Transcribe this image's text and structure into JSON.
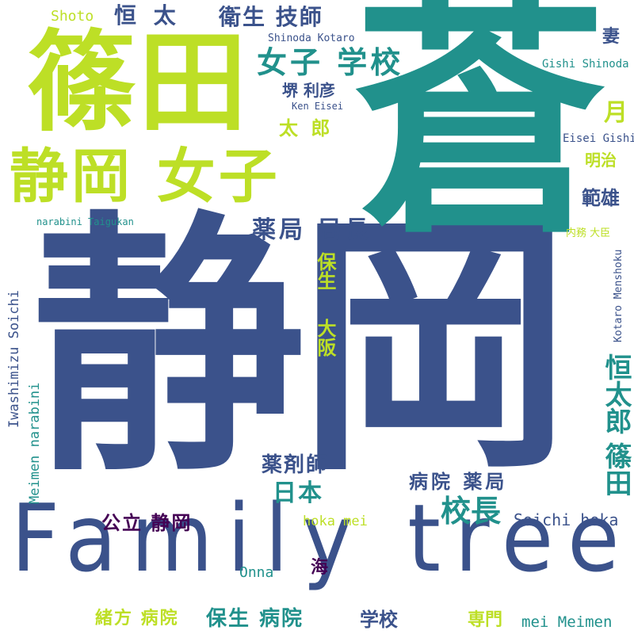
{
  "words": [
    {
      "id": "w1",
      "text": "静岡",
      "color": "#3b528b"
    },
    {
      "id": "w2",
      "text": "蒼",
      "color": "#21918c"
    },
    {
      "id": "w3",
      "text": "Family tree",
      "color": "#3b528b"
    },
    {
      "id": "w4",
      "text": "篠田",
      "color": "#bddf26"
    },
    {
      "id": "w5",
      "text": "静岡 女子",
      "color": "#bddf26"
    },
    {
      "id": "w6",
      "text": "女子 学校",
      "color": "#21918c"
    },
    {
      "id": "w7",
      "text": "衛生 技師",
      "color": "#3b528b"
    },
    {
      "id": "w8",
      "text": "Shoto",
      "color": "#bddf26"
    },
    {
      "id": "w9",
      "text": "恒 太",
      "color": "#3b528b"
    },
    {
      "id": "w10",
      "text": "Shinoda Kotaro",
      "color": "#3b528b"
    },
    {
      "id": "w11",
      "text": "堺 利彦",
      "color": "#3b528b"
    },
    {
      "id": "w12",
      "text": "Ken Eisei",
      "color": "#3b528b"
    },
    {
      "id": "w13",
      "text": "太 郎",
      "color": "#bddf26"
    },
    {
      "id": "w14",
      "text": "妻",
      "color": "#3b528b"
    },
    {
      "id": "w15",
      "text": "Gishi Shinoda",
      "color": "#21918c"
    },
    {
      "id": "w16",
      "text": "月",
      "color": "#bddf26"
    },
    {
      "id": "w17",
      "text": "Eisei Gishi",
      "color": "#3b528b"
    },
    {
      "id": "w18",
      "text": "明治",
      "color": "#bddf26"
    },
    {
      "id": "w19",
      "text": "範雄",
      "color": "#3b528b"
    },
    {
      "id": "w20",
      "text": "内務 大臣",
      "color": "#bddf26"
    },
    {
      "id": "w21",
      "text": "narabini Taigukan",
      "color": "#21918c"
    },
    {
      "id": "w22",
      "text": "薬局 局長",
      "color": "#3b528b"
    },
    {
      "id": "w23",
      "text": "保生",
      "color": "#bddf26"
    },
    {
      "id": "w24",
      "text": "大阪",
      "color": "#bddf26"
    },
    {
      "id": "w25",
      "text": "Iwashimizu Soichi",
      "color": "#3b528b"
    },
    {
      "id": "w26",
      "text": "Meimen narabini",
      "color": "#21918c"
    },
    {
      "id": "w27",
      "text": "Kotaro Menshoku",
      "color": "#3b528b"
    },
    {
      "id": "w28",
      "text": "恒太郎",
      "color": "#21918c"
    },
    {
      "id": "w29",
      "text": "篠田",
      "color": "#21918c"
    },
    {
      "id": "w30",
      "text": "薬剤師",
      "color": "#3b528b"
    },
    {
      "id": "w31",
      "text": "日本",
      "color": "#21918c"
    },
    {
      "id": "w32",
      "text": "病院 薬局",
      "color": "#3b528b"
    },
    {
      "id": "w33",
      "text": "校長",
      "color": "#21918c"
    },
    {
      "id": "w34",
      "text": "公立 静岡",
      "color": "#440154"
    },
    {
      "id": "w35",
      "text": "hoka mei",
      "color": "#bddf26"
    },
    {
      "id": "w36",
      "text": "Soichi hoka",
      "color": "#3b528b"
    },
    {
      "id": "w37",
      "text": "Onna",
      "color": "#21918c"
    },
    {
      "id": "w38",
      "text": "海",
      "color": "#440154"
    },
    {
      "id": "w39",
      "text": "緒方 病院",
      "color": "#bddf26"
    },
    {
      "id": "w40",
      "text": "保生 病院",
      "color": "#21918c"
    },
    {
      "id": "w41",
      "text": "学校",
      "color": "#3b528b"
    },
    {
      "id": "w42",
      "text": "専門",
      "color": "#bddf26"
    },
    {
      "id": "w43",
      "text": "mei Meimen",
      "color": "#21918c"
    }
  ]
}
